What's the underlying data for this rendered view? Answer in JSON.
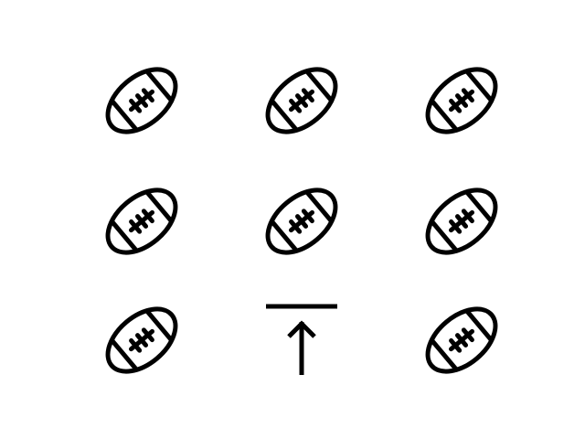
{
  "grid": {
    "rows": 3,
    "cols": 3,
    "stroke_color": "#000000",
    "background_color": "#ffffff",
    "cells": [
      {
        "icon": "football-icon"
      },
      {
        "icon": "football-icon"
      },
      {
        "icon": "football-icon"
      },
      {
        "icon": "football-icon"
      },
      {
        "icon": "football-icon"
      },
      {
        "icon": "football-icon"
      },
      {
        "icon": "football-icon"
      },
      {
        "icon": "upload-arrow-icon"
      },
      {
        "icon": "football-icon"
      }
    ]
  }
}
